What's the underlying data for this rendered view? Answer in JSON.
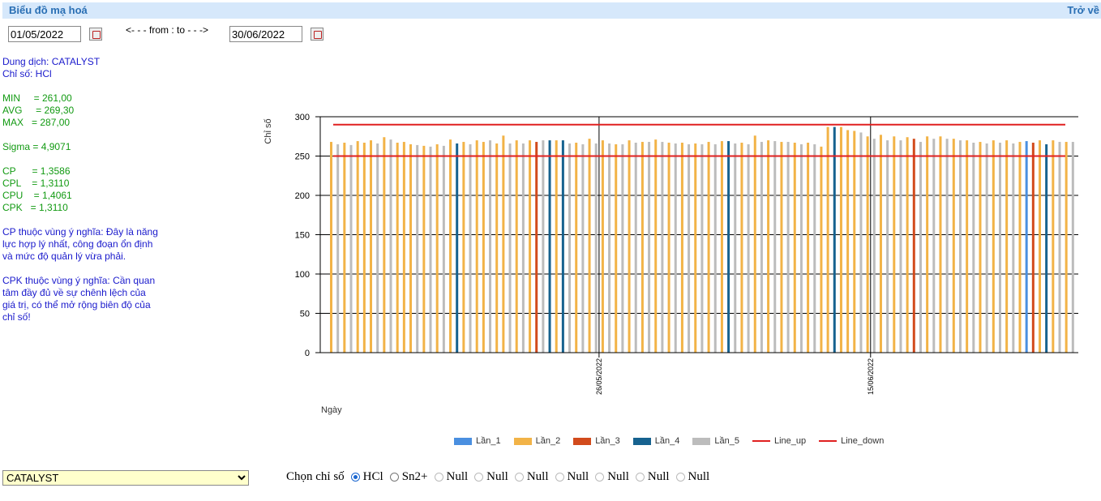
{
  "header": {
    "title": "Biểu đồ mạ hoá",
    "back_label": "Trở về"
  },
  "dates": {
    "from": "01/05/2022",
    "to": "30/06/2022",
    "separator": "<- - - from : to - - ->"
  },
  "stats": {
    "solution": "Dung dịch: CATALYST",
    "index": "Chỉ số: HCl",
    "min": "MIN     = 261,00",
    "avg": "AVG     = 269,30",
    "max": "MAX   = 287,00",
    "sigma": "Sigma = 4,9071",
    "cp": "CP      = 1,3586",
    "cpl": "CPL    = 1,3110",
    "cpu": "CPU    = 1,4061",
    "cpk": "CPK   = 1,3110",
    "cp_note": "CP thuộc vùng ý nghĩa: Đây là năng lực hợp lý nhất, công đoạn ổn định và mức độ quản lý vừa phải.",
    "cpk_note": "CPK thuộc vùng ý nghĩa: Cần quan tâm đầy đủ về sự chênh lệch của giá trị, có thể mở rộng biên độ của chỉ số!"
  },
  "controls": {
    "dropdown_value": "CATALYST",
    "choose_label": "Chọn chỉ số",
    "options": [
      "HCl",
      "Sn2+",
      "Null",
      "Null",
      "Null",
      "Null",
      "Null",
      "Null",
      "Null"
    ],
    "selected": "HCl"
  },
  "chart_data": {
    "type": "bar",
    "ylabel": "Chỉ số",
    "xlabel": "Ngày",
    "ylim": [
      0,
      300
    ],
    "yticks": [
      0,
      50,
      100,
      150,
      200,
      250,
      300
    ],
    "x_tick_labels": [
      "26/05/2022",
      "15/06/2022"
    ],
    "grid": true,
    "legend_position": "bottom",
    "colors": {
      "Lần_1": "#4a8fe0",
      "Lần_2": "#f2b347",
      "Lần_3": "#d24b1c",
      "Lần_4": "#16628f",
      "Lần_5": "#bcbcbc",
      "Line_up": "#e02020",
      "Line_down": "#e02020"
    },
    "series_order": [
      "Lần_1",
      "Lần_2",
      "Lần_3",
      "Lần_4",
      "Lần_5",
      "Line_up",
      "Line_down"
    ],
    "line_up": 290,
    "line_down": 250,
    "bars": [
      {
        "s": "Lần_2",
        "v": 268
      },
      {
        "s": "Lần_5",
        "v": 265
      },
      {
        "s": "Lần_2",
        "v": 267
      },
      {
        "s": "Lần_5",
        "v": 264
      },
      {
        "s": "Lần_2",
        "v": 269
      },
      {
        "s": "Lần_2",
        "v": 267
      },
      {
        "s": "Lần_2",
        "v": 270
      },
      {
        "s": "Lần_5",
        "v": 266
      },
      {
        "s": "Lần_2",
        "v": 274
      },
      {
        "s": "Lần_5",
        "v": 271
      },
      {
        "s": "Lần_2",
        "v": 267
      },
      {
        "s": "Lần_2",
        "v": 268
      },
      {
        "s": "Lần_2",
        "v": 265
      },
      {
        "s": "Lần_5",
        "v": 264
      },
      {
        "s": "Lần_2",
        "v": 263
      },
      {
        "s": "Lần_5",
        "v": 262
      },
      {
        "s": "Lần_2",
        "v": 265
      },
      {
        "s": "Lần_5",
        "v": 263
      },
      {
        "s": "Lần_2",
        "v": 271
      },
      {
        "s": "Lần_4",
        "v": 266
      },
      {
        "s": "Lần_2",
        "v": 268
      },
      {
        "s": "Lần_5",
        "v": 265
      },
      {
        "s": "Lần_2",
        "v": 270
      },
      {
        "s": "Lần_2",
        "v": 268
      },
      {
        "s": "Lần_5",
        "v": 270
      },
      {
        "s": "Lần_2",
        "v": 266
      },
      {
        "s": "Lần_2",
        "v": 276
      },
      {
        "s": "Lần_5",
        "v": 266
      },
      {
        "s": "Lần_2",
        "v": 270
      },
      {
        "s": "Lần_5",
        "v": 266
      },
      {
        "s": "Lần_2",
        "v": 270
      },
      {
        "s": "Lần_3",
        "v": 268
      },
      {
        "s": "Lần_5",
        "v": 270
      },
      {
        "s": "Lần_4",
        "v": 270
      },
      {
        "s": "Lần_2",
        "v": 270
      },
      {
        "s": "Lần_4",
        "v": 270
      },
      {
        "s": "Lần_5",
        "v": 266
      },
      {
        "s": "Lần_2",
        "v": 267
      },
      {
        "s": "Lần_5",
        "v": 265
      },
      {
        "s": "Lần_2",
        "v": 272
      },
      {
        "s": "Lần_5",
        "v": 266
      },
      {
        "s": "Lần_2",
        "v": 270
      },
      {
        "s": "Lần_5",
        "v": 266
      },
      {
        "s": "Lần_2",
        "v": 265
      },
      {
        "s": "Lần_5",
        "v": 265
      },
      {
        "s": "Lần_2",
        "v": 270
      },
      {
        "s": "Lần_5",
        "v": 267
      },
      {
        "s": "Lần_2",
        "v": 268
      },
      {
        "s": "Lần_5",
        "v": 268
      },
      {
        "s": "Lần_2",
        "v": 271
      },
      {
        "s": "Lần_5",
        "v": 268
      },
      {
        "s": "Lần_2",
        "v": 267
      },
      {
        "s": "Lần_5",
        "v": 266
      },
      {
        "s": "Lần_2",
        "v": 267
      },
      {
        "s": "Lần_5",
        "v": 265
      },
      {
        "s": "Lần_2",
        "v": 266
      },
      {
        "s": "Lần_5",
        "v": 265
      },
      {
        "s": "Lần_2",
        "v": 268
      },
      {
        "s": "Lần_5",
        "v": 265
      },
      {
        "s": "Lần_2",
        "v": 269
      },
      {
        "s": "Lần_4",
        "v": 269
      },
      {
        "s": "Lần_5",
        "v": 266
      },
      {
        "s": "Lần_2",
        "v": 267
      },
      {
        "s": "Lần_5",
        "v": 265
      },
      {
        "s": "Lần_2",
        "v": 276
      },
      {
        "s": "Lần_5",
        "v": 268
      },
      {
        "s": "Lần_2",
        "v": 270
      },
      {
        "s": "Lần_5",
        "v": 269
      },
      {
        "s": "Lần_2",
        "v": 268
      },
      {
        "s": "Lần_5",
        "v": 268
      },
      {
        "s": "Lần_2",
        "v": 267
      },
      {
        "s": "Lần_5",
        "v": 265
      },
      {
        "s": "Lần_2",
        "v": 267
      },
      {
        "s": "Lần_5",
        "v": 265
      },
      {
        "s": "Lần_2",
        "v": 262
      },
      {
        "s": "Lần_2",
        "v": 287
      },
      {
        "s": "Lần_4",
        "v": 287
      },
      {
        "s": "Lần_2",
        "v": 287
      },
      {
        "s": "Lần_2",
        "v": 283
      },
      {
        "s": "Lần_2",
        "v": 282
      },
      {
        "s": "Lần_5",
        "v": 280
      },
      {
        "s": "Lần_2",
        "v": 275
      },
      {
        "s": "Lần_5",
        "v": 272
      },
      {
        "s": "Lần_2",
        "v": 277
      },
      {
        "s": "Lần_5",
        "v": 270
      },
      {
        "s": "Lần_2",
        "v": 275
      },
      {
        "s": "Lần_5",
        "v": 270
      },
      {
        "s": "Lần_2",
        "v": 274
      },
      {
        "s": "Lần_3",
        "v": 272
      },
      {
        "s": "Lần_5",
        "v": 268
      },
      {
        "s": "Lần_2",
        "v": 275
      },
      {
        "s": "Lần_5",
        "v": 272
      },
      {
        "s": "Lần_2",
        "v": 275
      },
      {
        "s": "Lần_5",
        "v": 272
      },
      {
        "s": "Lần_2",
        "v": 272
      },
      {
        "s": "Lần_5",
        "v": 270
      },
      {
        "s": "Lần_2",
        "v": 270
      },
      {
        "s": "Lần_5",
        "v": 267
      },
      {
        "s": "Lần_2",
        "v": 268
      },
      {
        "s": "Lần_5",
        "v": 266
      },
      {
        "s": "Lần_2",
        "v": 270
      },
      {
        "s": "Lần_5",
        "v": 267
      },
      {
        "s": "Lần_2",
        "v": 270
      },
      {
        "s": "Lần_5",
        "v": 266
      },
      {
        "s": "Lần_2",
        "v": 268
      },
      {
        "s": "Lần_1",
        "v": 269
      },
      {
        "s": "Lần_3",
        "v": 267
      },
      {
        "s": "Lần_2",
        "v": 270
      },
      {
        "s": "Lần_4",
        "v": 265
      },
      {
        "s": "Lần_2",
        "v": 270
      },
      {
        "s": "Lần_5",
        "v": 268
      },
      {
        "s": "Lần_2",
        "v": 268
      },
      {
        "s": "Lần_5",
        "v": 268
      }
    ]
  }
}
